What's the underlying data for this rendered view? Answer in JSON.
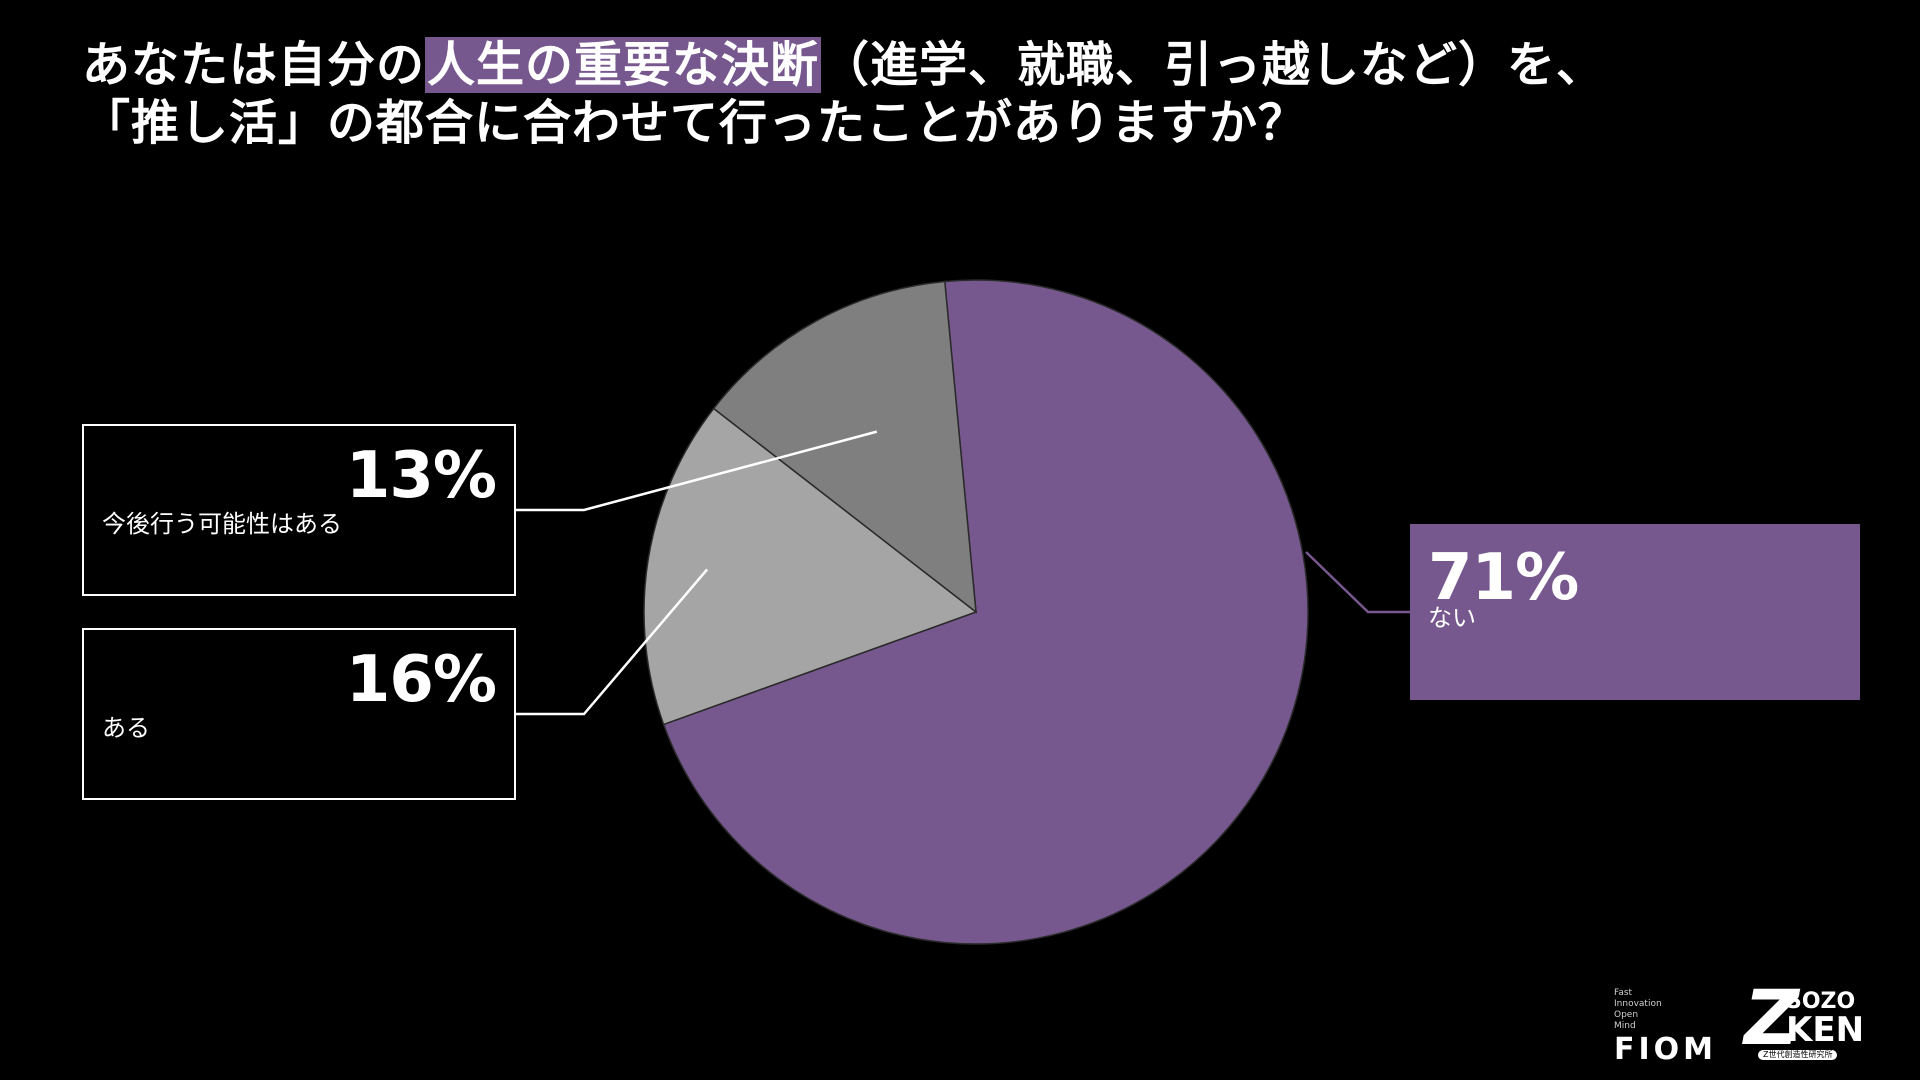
{
  "title": {
    "line1_before": "あなたは自分の",
    "line1_highlight": "人生の重要な決断",
    "line1_after": "（進学、就職、引っ越しなど）を、",
    "line2": "「推し活」の都合に合わせて行ったことがありますか？"
  },
  "colors": {
    "background": "#000000",
    "accent_purple": "#76588f",
    "slice_dark_gray": "#7f7f7f",
    "slice_light_gray": "#a5a5a5",
    "text": "#ffffff"
  },
  "chart_data": {
    "type": "pie",
    "title": "",
    "slices": [
      {
        "label": "ない",
        "value": 71,
        "display": "71%",
        "color": "#76588f"
      },
      {
        "label": "ある",
        "value": 16,
        "display": "16%",
        "color": "#a5a5a5"
      },
      {
        "label": "今後行う可能性はある",
        "value": 13,
        "display": "13%",
        "color": "#7f7f7f"
      }
    ]
  },
  "logos": {
    "fiom_small_lines": [
      "Fast",
      "Innovation",
      "Open",
      "Mind"
    ],
    "fiom_text": "FIOM",
    "zoken_z": "Z",
    "zoken_sozo": "SOZO",
    "zoken_ken": "KEN",
    "zoken_sub": "Z世代創造性研究所"
  }
}
